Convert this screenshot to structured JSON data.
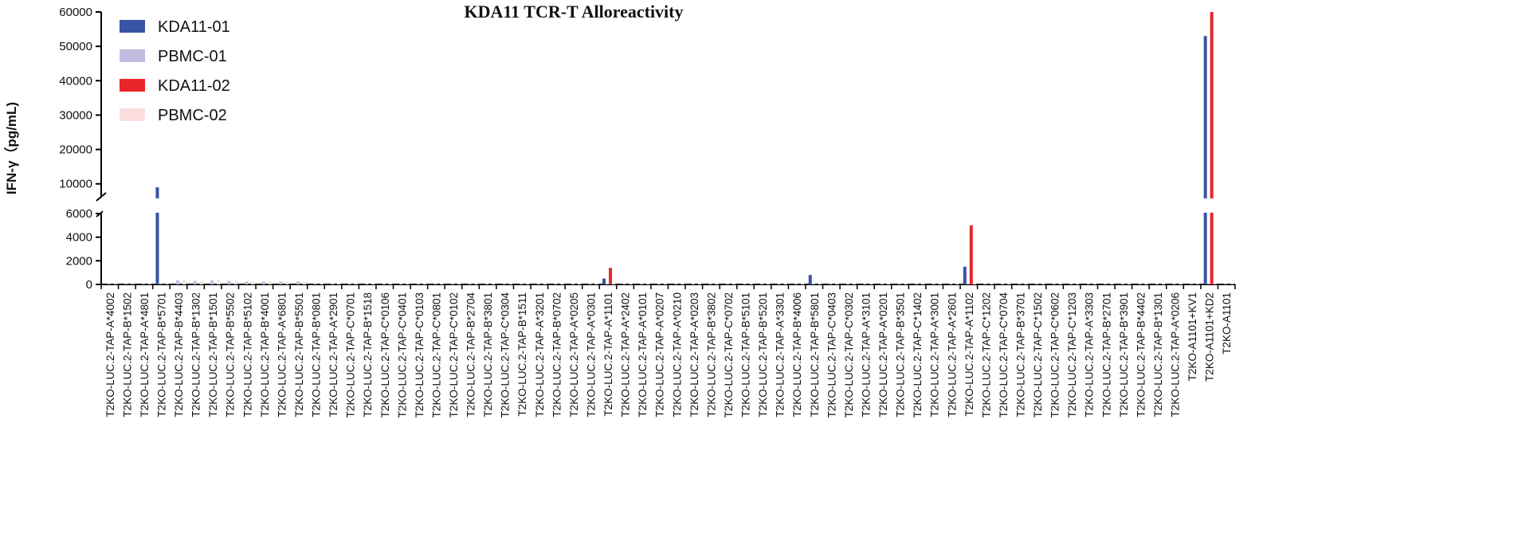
{
  "chart_data": {
    "type": "bar",
    "title": "KDA11 TCR-T Alloreactivity",
    "y_label": "IFN-γ（pg/mL)",
    "categories": [
      "T2KO-LUC.2-TAP-A*4002",
      "T2KO-LUC.2-TAP-B*1502",
      "T2KO-LUC.2-TAP-A*4801",
      "T2KO-LUC.2-TAP-B*5701",
      "T2KO-LUC.2-TAP-B*4403",
      "T2KO-LUC.2-TAP-B*1302",
      "T2KO-LUC.2-TAP-B*1501",
      "T2KO-LUC.2-TAP-B*5502",
      "T2KO-LUC.2-TAP-B*5102",
      "T2KO-LUC.2-TAP-B*4001",
      "T2KO-LUC.2-TAP-A*6801",
      "T2KO-LUC.2-TAP-B*5501",
      "T2KO-LUC.2-TAP-B*0801",
      "T2KO-LUC.2-TAP-A*2901",
      "T2KO-LUC.2-TAP-C*0701",
      "T2KO-LUC.2-TAP-B*1518",
      "T2KO-LUC.2-TAP-C*0106",
      "T2KO-LUC.2-TAP-C*0401",
      "T2KO-LUC.2-TAP-C*0103",
      "T2KO-LUC.2-TAP-C*0801",
      "T2KO-LUC.2-TAP-C*0102",
      "T2KO-LUC.2-TAP-B*2704",
      "T2KO-LUC.2-TAP-B*3801",
      "T2KO-LUC.2-TAP-C*0304",
      "T2KO-LUC.2-TAP-B*1511",
      "T2KO-LUC.2-TAP-A*3201",
      "T2KO-LUC.2-TAP-B*0702",
      "T2KO-LUC.2-TAP-A*0205",
      "T2KO-LUC.2-TAP-A*0301",
      "T2KO-LUC.2-TAP-A*1101",
      "T2KO-LUC.2-TAP-A*2402",
      "T2KO-LUC.2-TAP-A*0101",
      "T2KO-LUC.2-TAP-A*0207",
      "T2KO-LUC.2-TAP-A*0210",
      "T2KO-LUC.2-TAP-A*0203",
      "T2KO-LUC.2-TAP-B*3802",
      "T2KO-LUC.2-TAP-C*0702",
      "T2KO-LUC.2-TAP-B*5101",
      "T2KO-LUC.2-TAP-B*5201",
      "T2KO-LUC.2-TAP-A*3301",
      "T2KO-LUC.2-TAP-B*4006",
      "T2KO-LUC.2-TAP-B*5801",
      "T2KO-LUC.2-TAP-C*0403",
      "T2KO-LUC.2-TAP-C*0302",
      "T2KO-LUC.2-TAP-A*3101",
      "T2KO-LUC.2-TAP-A*0201",
      "T2KO-LUC.2-TAP-B*3501",
      "T2KO-LUC.2-TAP-C*1402",
      "T2KO-LUC.2-TAP-A*3001",
      "T2KO-LUC.2-TAP-A*2601",
      "T2KO-LUC.2-TAP-A*1102",
      "T2KO-LUC.2-TAP-C*1202",
      "T2KO-LUC.2-TAP-C*0704",
      "T2KO-LUC.2-TAP-B*3701",
      "T2KO-LUC.2-TAP-C*1502",
      "T2KO-LUC.2-TAP-C*0602",
      "T2KO-LUC.2-TAP-C*1203",
      "T2KO-LUC.2-TAP-A*3303",
      "T2KO-LUC.2-TAP-B*2701",
      "T2KO-LUC.2-TAP-B*3901",
      "T2KO-LUC.2-TAP-B*4402",
      "T2KO-LUC.2-TAP-B*1301",
      "T2KO-LUC.2-TAP-A*0206",
      "T2KO-A1101+KV1",
      "T2KO-A1101+KD2",
      "T2KO-A1101"
    ],
    "series": [
      {
        "name": "KDA11-01",
        "color": "#3a54a4",
        "values": [
          0,
          0,
          0,
          9000,
          0,
          0,
          0,
          0,
          0,
          0,
          0,
          0,
          0,
          0,
          0,
          0,
          0,
          0,
          0,
          0,
          0,
          0,
          0,
          0,
          0,
          0,
          0,
          0,
          0,
          500,
          0,
          0,
          0,
          0,
          0,
          0,
          0,
          0,
          0,
          0,
          0,
          800,
          0,
          0,
          0,
          0,
          0,
          0,
          0,
          0,
          1500,
          0,
          0,
          0,
          0,
          0,
          0,
          0,
          0,
          0,
          0,
          0,
          0,
          0,
          53000,
          0
        ]
      },
      {
        "name": "PBMC-01",
        "color": "#c0bde0",
        "values": [
          50,
          50,
          50,
          50,
          350,
          300,
          350,
          300,
          250,
          250,
          250,
          250,
          100,
          80,
          80,
          80,
          80,
          80,
          80,
          80,
          80,
          80,
          80,
          80,
          80,
          80,
          80,
          80,
          80,
          80,
          80,
          80,
          80,
          80,
          80,
          80,
          80,
          80,
          80,
          80,
          80,
          80,
          80,
          80,
          80,
          80,
          80,
          80,
          80,
          80,
          80,
          80,
          80,
          80,
          80,
          80,
          80,
          80,
          80,
          80,
          80,
          80,
          80,
          50,
          50,
          50
        ]
      },
      {
        "name": "KDA11-02",
        "color": "#e8262a",
        "values": [
          0,
          0,
          0,
          0,
          0,
          0,
          0,
          0,
          0,
          0,
          0,
          0,
          0,
          0,
          0,
          0,
          0,
          0,
          0,
          0,
          0,
          0,
          0,
          0,
          0,
          0,
          0,
          0,
          0,
          1400,
          0,
          0,
          0,
          0,
          0,
          0,
          0,
          0,
          0,
          0,
          0,
          0,
          0,
          0,
          0,
          0,
          0,
          0,
          0,
          0,
          5000,
          0,
          0,
          0,
          0,
          0,
          0,
          0,
          0,
          0,
          0,
          0,
          0,
          0,
          60000,
          0
        ]
      },
      {
        "name": "PBMC-02",
        "color": "#fcdde0",
        "values": [
          50,
          50,
          50,
          50,
          350,
          300,
          350,
          300,
          250,
          250,
          250,
          250,
          100,
          80,
          80,
          80,
          80,
          80,
          80,
          80,
          80,
          80,
          80,
          80,
          80,
          80,
          80,
          80,
          80,
          80,
          80,
          80,
          80,
          80,
          80,
          80,
          80,
          80,
          80,
          80,
          80,
          80,
          80,
          80,
          80,
          80,
          80,
          80,
          80,
          80,
          80,
          80,
          80,
          80,
          80,
          80,
          80,
          80,
          80,
          80,
          80,
          80,
          80,
          50,
          50,
          50
        ]
      }
    ],
    "ylim": [
      0,
      60000
    ],
    "ybreak": 6000,
    "yticks": [
      0,
      2000,
      4000,
      6000,
      10000,
      20000,
      30000,
      40000,
      50000,
      60000
    ],
    "legend": "upper-left"
  }
}
